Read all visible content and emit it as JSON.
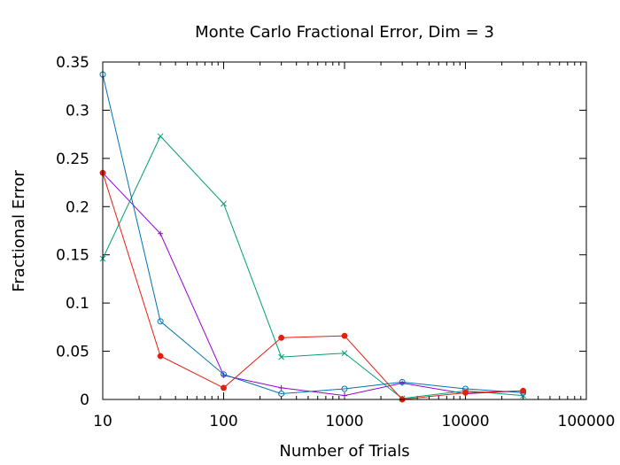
{
  "chart_data": {
    "type": "line",
    "title": "Monte Carlo Fractional Error, Dim = 3",
    "xlabel": "Number of Trials",
    "ylabel": "Fractional Error",
    "xscale": "log",
    "xlim": [
      10,
      100000
    ],
    "ylim": [
      0,
      0.35
    ],
    "x_ticks": [
      10,
      100,
      1000,
      10000,
      100000
    ],
    "x_tick_labels": [
      "10",
      "100",
      "1000",
      "10000",
      "100000"
    ],
    "y_ticks": [
      0,
      0.05,
      0.1,
      0.15,
      0.2,
      0.25,
      0.3,
      0.35
    ],
    "y_tick_labels": [
      "0",
      "0.05",
      "0.1",
      "0.15",
      "0.2",
      "0.25",
      "0.3",
      "0.35"
    ],
    "grid": false,
    "legend": "none",
    "x": [
      10,
      30,
      100,
      300,
      1000,
      3000,
      10000,
      30000
    ],
    "series": [
      {
        "name": "series-1",
        "color": "#9400d3",
        "marker": "plus",
        "values": [
          0.235,
          0.172,
          0.025,
          0.012,
          0.004,
          0.017,
          0.006,
          0.009
        ]
      },
      {
        "name": "series-2",
        "color": "#009e73",
        "marker": "cross",
        "values": [
          0.146,
          0.273,
          0.203,
          0.044,
          0.048,
          0.001,
          0.009,
          0.004
        ]
      },
      {
        "name": "series-3",
        "color": "#56b4e9",
        "line_color": "#0072b2",
        "marker": "open-circle",
        "values": [
          0.337,
          0.081,
          0.026,
          0.006,
          0.011,
          0.018,
          0.011,
          0.007
        ]
      },
      {
        "name": "series-4",
        "color": "#e51e10",
        "marker": "filled-circle",
        "values": [
          0.235,
          0.045,
          0.012,
          0.064,
          0.066,
          0.0,
          0.007,
          0.009
        ]
      }
    ]
  }
}
